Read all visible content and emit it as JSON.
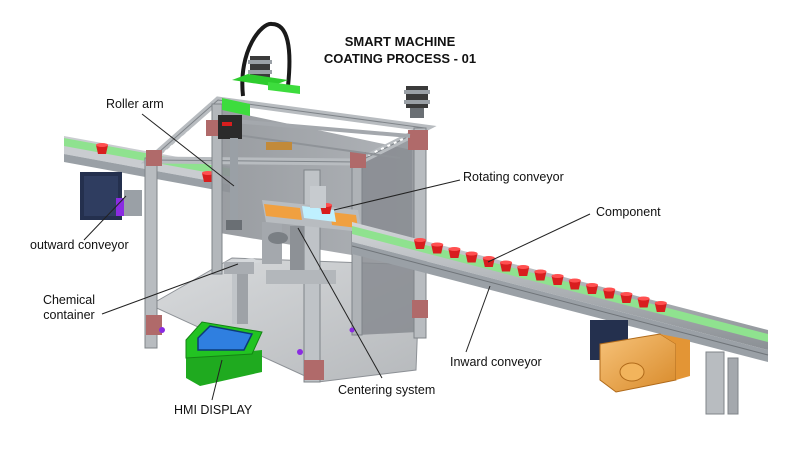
{
  "title": {
    "line1": "SMART MACHINE",
    "line2": "COATING PROCESS - 01"
  },
  "labels": {
    "roller_arm": "Roller arm",
    "rotating_conveyor": "Rotating conveyor",
    "component": "Component",
    "outward_conveyor": "outward conveyor",
    "chemical_container_line1": "Chemical",
    "chemical_container_line2": "container",
    "inward_conveyor": "Inward conveyor",
    "centering_system": "Centering system",
    "hmi_display": "HMI DISPLAY"
  },
  "colors": {
    "frame": "#b8bcc0",
    "frame_dark": "#7f8489",
    "belt": "#8fe28f",
    "cup": "#d81e1e",
    "corner_bracket": "#b06a6a",
    "hmi_body": "#22c322",
    "hmi_screen": "#2f7fe0",
    "motor_blue": "#24304e",
    "gearbox_orange": "#f0a040",
    "mount_green": "#3ddc3d",
    "cable": "#1a1a1a",
    "leader_line": "#222222"
  }
}
